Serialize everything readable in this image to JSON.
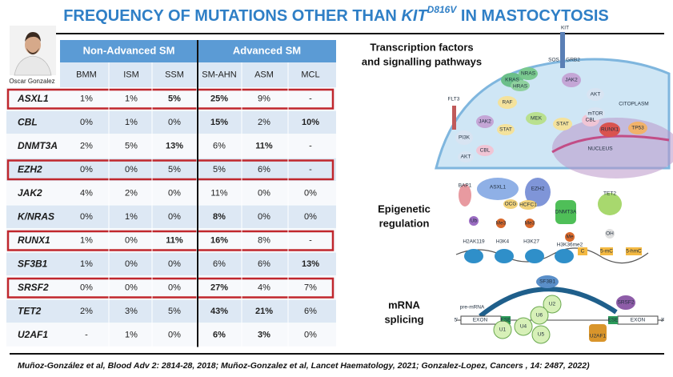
{
  "header": {
    "title": {
      "start": "FREQUENCY OF MUTATIONS OTHER THAN ",
      "gene": "KIT",
      "superscript": "D816V",
      "end": " IN MASTOCYTOSIS"
    },
    "presenter": "Oscar Gonzalez"
  },
  "table": {
    "groups": [
      "Non-Advanced SM",
      "Advanced SM"
    ],
    "columns": [
      "BMM",
      "ISM",
      "SSM",
      "SM-AHN",
      "ASM",
      "MCL"
    ],
    "rows": [
      {
        "gene": "ASXL1",
        "cells": [
          "1%",
          "1%",
          "5%",
          "25%",
          "9%",
          "-"
        ],
        "bold": [
          2,
          3
        ],
        "highlight": true
      },
      {
        "gene": "CBL",
        "cells": [
          "0%",
          "1%",
          "0%",
          "15%",
          "2%",
          "10%"
        ],
        "bold": [
          3,
          5
        ],
        "highlight": false
      },
      {
        "gene": "DNMT3A",
        "cells": [
          "2%",
          "5%",
          "13%",
          "6%",
          "11%",
          "-"
        ],
        "bold": [
          2,
          4
        ],
        "highlight": false
      },
      {
        "gene": "EZH2",
        "cells": [
          "0%",
          "0%",
          "5%",
          "5%",
          "6%",
          "-"
        ],
        "bold": [],
        "highlight": true
      },
      {
        "gene": "JAK2",
        "cells": [
          "4%",
          "2%",
          "0%",
          "11%",
          "0%",
          "0%"
        ],
        "bold": [],
        "highlight": false
      },
      {
        "gene": "K/NRAS",
        "cells": [
          "0%",
          "1%",
          "0%",
          "8%",
          "0%",
          "0%"
        ],
        "bold": [
          3
        ],
        "highlight": false
      },
      {
        "gene": "RUNX1",
        "cells": [
          "1%",
          "0%",
          "11%",
          "16%",
          "8%",
          "-"
        ],
        "bold": [
          2,
          3
        ],
        "highlight": true
      },
      {
        "gene": "SF3B1",
        "cells": [
          "1%",
          "0%",
          "0%",
          "6%",
          "6%",
          "13%"
        ],
        "bold": [
          5
        ],
        "highlight": false
      },
      {
        "gene": "SRSF2",
        "cells": [
          "0%",
          "0%",
          "0%",
          "27%",
          "4%",
          "7%"
        ],
        "bold": [
          3
        ],
        "highlight": true
      },
      {
        "gene": "TET2",
        "cells": [
          "2%",
          "3%",
          "5%",
          "43%",
          "21%",
          "6%"
        ],
        "bold": [
          3,
          4
        ],
        "highlight": false
      },
      {
        "gene": "U2AF1",
        "cells": [
          "-",
          "1%",
          "0%",
          "6%",
          "3%",
          "0%"
        ],
        "bold": [
          3,
          4
        ],
        "highlight": false
      }
    ]
  },
  "panels": [
    {
      "heading": [
        "Transcription factors",
        "and signalling pathways"
      ],
      "labels": [
        "KIT",
        "SOS",
        "GRB2",
        "KRAS",
        "NRAS",
        "HRAS",
        "JAK2",
        "AKT",
        "mTOR",
        "CITOPLASM",
        "RAF",
        "MEK",
        "STAT",
        "CBL",
        "FLT3",
        "JAK2",
        "STAT",
        "PI3K",
        "CBL",
        "AKT",
        "RUNX1",
        "TP53",
        "NUCLEUS"
      ]
    },
    {
      "heading": [
        "Epigenetic",
        "regulation"
      ],
      "labels": [
        "BAP1",
        "ASXL1",
        "EZH2",
        "OCG",
        "HCFC1",
        "DNMT3A",
        "TET2",
        "Ub",
        "Me3",
        "Me3",
        "Me",
        "OH",
        "H2AK119",
        "H3K4",
        "H3K27",
        "H3K36me2",
        "C",
        "5-mC",
        "5-hmC"
      ]
    },
    {
      "heading": [
        "mRNA",
        "splicing"
      ],
      "labels": [
        "SF3B1",
        "pre-mRNA",
        "U2",
        "U6",
        "U4",
        "U5",
        "U1",
        "SRSF2",
        "U2AF1",
        "EXON",
        "ESE",
        "EXON",
        "ESE",
        "5'",
        "3'"
      ]
    }
  ],
  "citation": "Muñoz-González et al, Blood Adv 2: 2814-28, 2018; Muñoz-Gonzalez et al, Lancet Haematology, 2021; Gonzalez-Lopez, Cancers , 14: 2487, 2022)"
}
